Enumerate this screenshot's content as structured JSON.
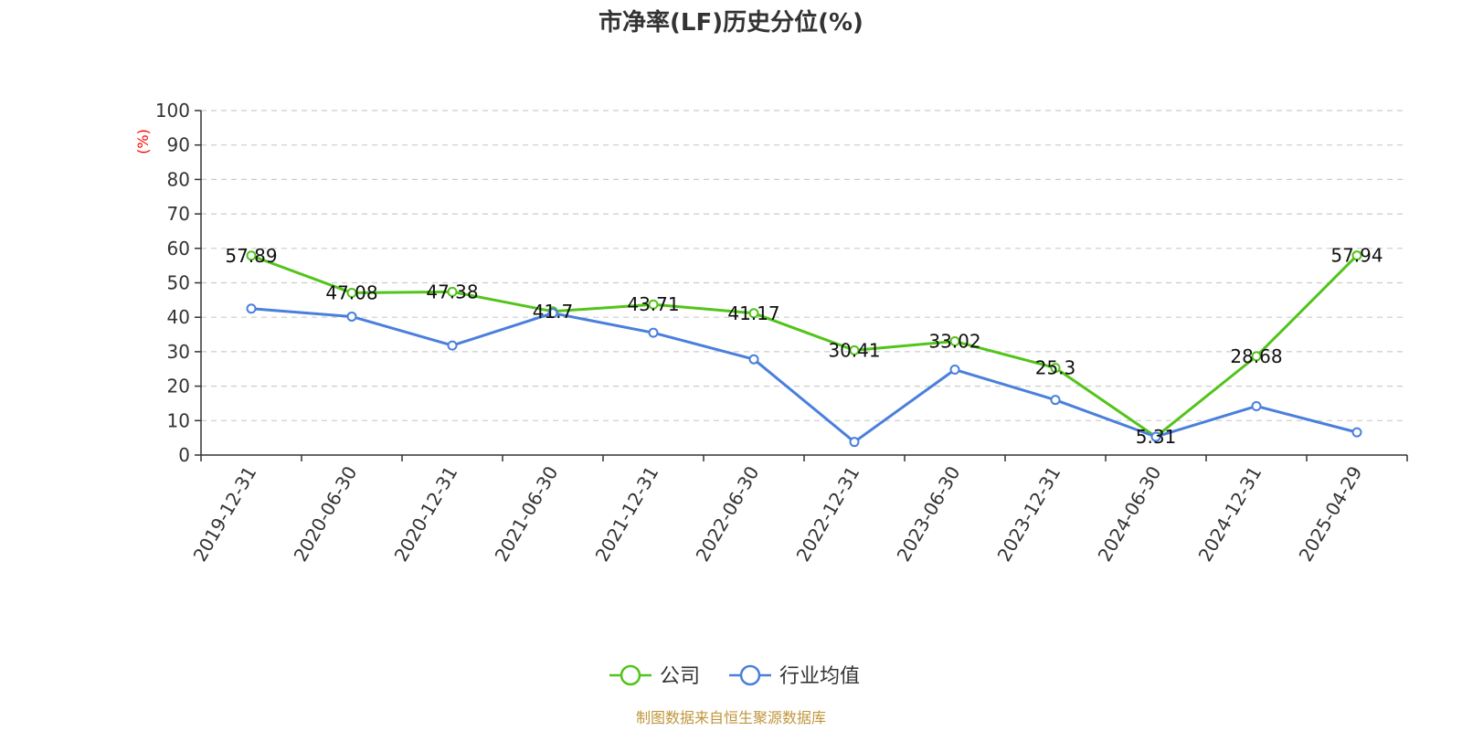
{
  "chart_data": {
    "type": "line",
    "title": "市净率(LF)历史分位(%)",
    "ylabel": "(%)",
    "ylim": [
      0,
      100
    ],
    "yticks": [
      0,
      10,
      20,
      30,
      40,
      50,
      60,
      70,
      80,
      90,
      100
    ],
    "grid": true,
    "legend_position": "bottom",
    "categories": [
      "2019-12-31",
      "2020-06-30",
      "2020-12-31",
      "2021-06-30",
      "2021-12-31",
      "2022-06-30",
      "2022-12-31",
      "2023-06-30",
      "2023-12-31",
      "2024-06-30",
      "2024-12-31",
      "2025-04-29"
    ],
    "series": [
      {
        "name": "公司",
        "color": "#52c41a",
        "values": [
          57.89,
          47.08,
          47.38,
          41.7,
          43.71,
          41.17,
          30.41,
          33.02,
          25.3,
          5.31,
          28.68,
          57.94
        ],
        "labels": [
          "57.89",
          "47.08",
          "47.38",
          "41.7",
          "43.71",
          "41.17",
          "30.41",
          "33.02",
          "25.3",
          "5.31",
          "28.68",
          "57.94"
        ]
      },
      {
        "name": "行业均值",
        "color": "#4a7fdc",
        "values": [
          42.5,
          40.2,
          31.8,
          41.2,
          35.5,
          27.8,
          3.8,
          24.8,
          16.0,
          5.3,
          14.2,
          6.6
        ]
      }
    ],
    "source": "制图数据来自恒生聚源数据库"
  }
}
